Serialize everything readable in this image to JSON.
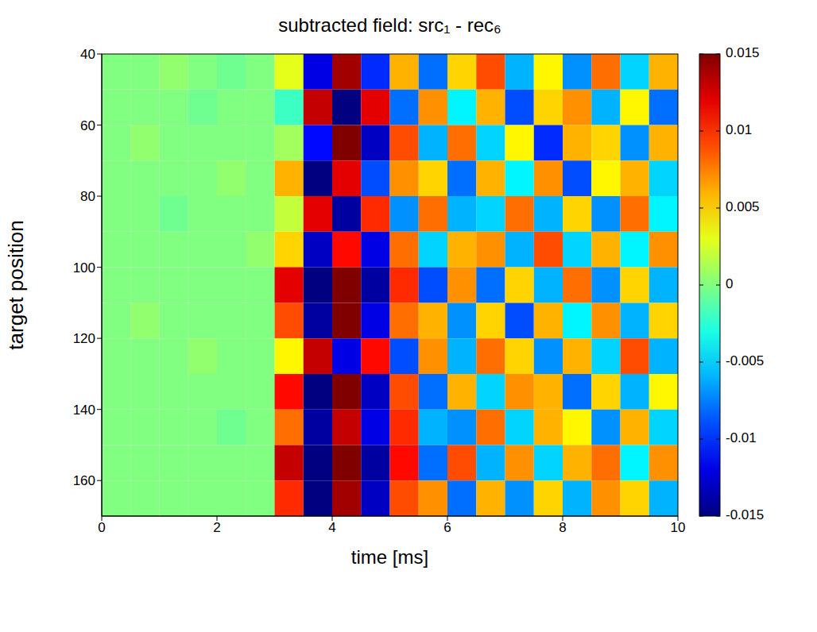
{
  "chart_data": {
    "type": "heatmap",
    "title": "subtracted field: src₁ - rec₆",
    "x_label": "time  [ms]",
    "y_label": "target position",
    "xlim": [
      0,
      10
    ],
    "xticks": [
      0,
      2,
      4,
      6,
      8,
      10
    ],
    "ylim": [
      40,
      170
    ],
    "yticks": [
      40,
      60,
      80,
      100,
      120,
      140,
      160
    ],
    "grid": false,
    "cells": {
      "x_edges": [
        0,
        0.5,
        1,
        1.5,
        2,
        2.5,
        3,
        3.5,
        4,
        4.5,
        5,
        5.5,
        6,
        6.5,
        7,
        7.5,
        8,
        8.5,
        9,
        9.5,
        10
      ],
      "y_edges": [
        40,
        50,
        60,
        70,
        80,
        90,
        100,
        110,
        120,
        130,
        140,
        150,
        160,
        170
      ],
      "values": [
        [
          0,
          0,
          0.0005,
          0,
          -0.0005,
          0,
          0.003,
          -0.012,
          0.014,
          -0.01,
          0.006,
          -0.008,
          0.005,
          0.009,
          -0.006,
          0.004,
          -0.007,
          0.008,
          -0.005,
          0.006
        ],
        [
          0,
          0,
          0,
          -0.0005,
          0,
          0,
          -0.002,
          0.013,
          -0.015,
          0.012,
          -0.008,
          0.007,
          -0.004,
          0.006,
          -0.009,
          0.005,
          0.007,
          -0.006,
          0.004,
          -0.008
        ],
        [
          0,
          0.0005,
          0,
          0,
          0,
          0,
          0.001,
          -0.011,
          0.015,
          -0.013,
          0.009,
          -0.006,
          0.008,
          -0.005,
          0.004,
          -0.01,
          0.006,
          0.005,
          -0.007,
          0.006
        ],
        [
          0,
          0,
          0,
          0,
          0.0005,
          0,
          0.006,
          -0.015,
          0.012,
          -0.009,
          0.007,
          0.005,
          -0.008,
          0.006,
          -0.004,
          0.007,
          -0.009,
          0.004,
          0.006,
          -0.005
        ],
        [
          0,
          0,
          -0.0005,
          0,
          0,
          0,
          0.002,
          0.012,
          -0.014,
          0.01,
          -0.007,
          0.008,
          -0.006,
          -0.005,
          0.008,
          -0.006,
          0.005,
          -0.007,
          0.008,
          -0.004
        ],
        [
          0,
          0,
          0,
          0,
          0,
          0.0005,
          0.005,
          -0.013,
          0.011,
          -0.012,
          0.008,
          -0.005,
          0.006,
          0.007,
          -0.006,
          0.009,
          -0.005,
          0.006,
          -0.004,
          0.007
        ],
        [
          0,
          0,
          0,
          0,
          0,
          0,
          0.012,
          -0.015,
          0.015,
          -0.014,
          0.01,
          -0.009,
          0.007,
          -0.008,
          0.005,
          -0.006,
          0.008,
          -0.007,
          0.005,
          -0.006
        ],
        [
          0,
          0.0005,
          0,
          0,
          0,
          0,
          0.009,
          -0.014,
          0.015,
          -0.012,
          0.008,
          0.006,
          -0.007,
          0.005,
          -0.009,
          0.006,
          -0.004,
          0.007,
          -0.006,
          0.005
        ],
        [
          0,
          0,
          0,
          0.0005,
          0,
          0,
          0.004,
          0.013,
          -0.012,
          0.011,
          -0.009,
          0.007,
          -0.006,
          0.008,
          0.005,
          -0.007,
          0.006,
          -0.005,
          0.009,
          -0.006
        ],
        [
          0,
          0,
          0,
          0,
          0,
          0,
          0.011,
          -0.015,
          0.015,
          -0.013,
          0.009,
          -0.008,
          0.006,
          -0.005,
          0.007,
          0.006,
          -0.008,
          0.005,
          -0.006,
          0.004
        ],
        [
          0,
          0,
          0,
          0,
          -0.0005,
          0,
          0.008,
          -0.014,
          0.013,
          -0.012,
          0.01,
          -0.006,
          -0.007,
          0.008,
          -0.005,
          0.006,
          0.004,
          -0.007,
          0.006,
          -0.005
        ],
        [
          0,
          0,
          0,
          0,
          0,
          0,
          0.013,
          -0.015,
          0.015,
          -0.014,
          0.011,
          -0.008,
          0.009,
          -0.006,
          0.007,
          -0.005,
          0.006,
          0.008,
          -0.004,
          0.007
        ],
        [
          0,
          0,
          0,
          0,
          0,
          0,
          0.01,
          -0.015,
          0.014,
          -0.013,
          0.009,
          0.007,
          -0.008,
          0.006,
          -0.007,
          0.005,
          -0.006,
          0.007,
          0.005,
          -0.006
        ]
      ]
    },
    "colorbar": {
      "lim": [
        -0.015,
        0.015
      ],
      "ticks": [
        -0.015,
        -0.01,
        -0.005,
        0,
        0.005,
        0.01,
        0.015
      ]
    }
  }
}
